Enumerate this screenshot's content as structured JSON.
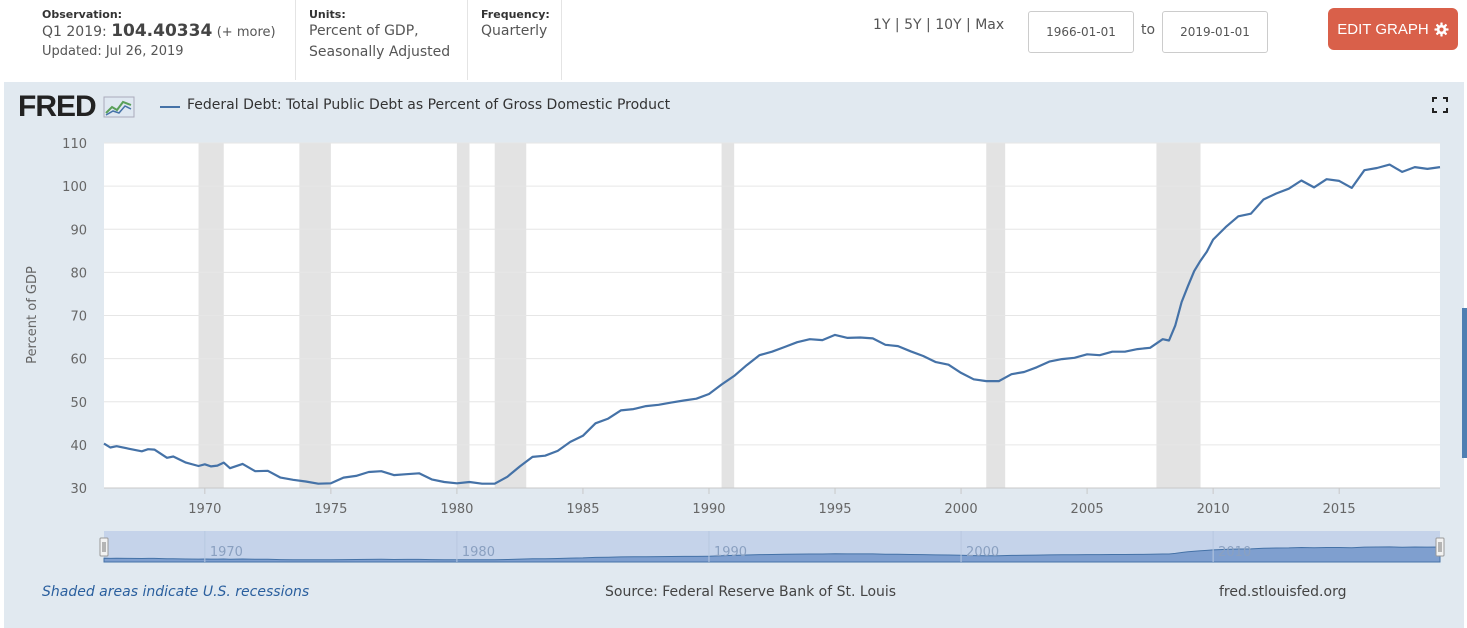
{
  "header": {
    "observation_label": "Observation:",
    "observation_period": "Q1 2019:",
    "observation_value": "104.40334",
    "observation_more": "(+ more)",
    "updated": "Updated: Jul 26, 2019",
    "units_label": "Units:",
    "units_line1": "Percent of GDP,",
    "units_line2": "Seasonally Adjusted",
    "frequency_label": "Frequency:",
    "frequency_value": "Quarterly",
    "range_1y": "1Y",
    "range_5y": "5Y",
    "range_10y": "10Y",
    "range_max": "Max",
    "range_sep": " | ",
    "start_date": "1966-01-01",
    "to_label": "to",
    "end_date": "2019-01-01",
    "edit_button": "EDIT GRAPH",
    "edit_icon": "gear-icon"
  },
  "logo": "FRED",
  "footer": {
    "recession_note": "Shaded areas indicate U.S. recessions",
    "source": "Source: Federal Reserve Bank of St. Louis",
    "site": "fred.stlouisfed.org"
  },
  "colors": {
    "line": "#4572a7",
    "recession": "#e3e3e3",
    "navigator_fill": "#7f9fcf",
    "navigator_bg": "#c5d3ea",
    "accent": "#d9604a"
  },
  "chart_data": {
    "type": "line",
    "title": "Federal Debt: Total Public Debt as Percent of Gross Domestic Product",
    "ylabel": "Percent of GDP",
    "xlabel": "",
    "xlim": [
      1966.0,
      2019.0
    ],
    "ylim": [
      30,
      110
    ],
    "yticks": [
      30,
      40,
      50,
      60,
      70,
      80,
      90,
      100,
      110
    ],
    "xticks": [
      1970,
      1975,
      1980,
      1985,
      1990,
      1995,
      2000,
      2005,
      2010,
      2015
    ],
    "navigator_ticks": [
      1970,
      1980,
      1990,
      2000,
      2010
    ],
    "grid": true,
    "legend": "top-left",
    "recessions": [
      [
        1969.75,
        1970.75
      ],
      [
        1973.75,
        1975.0
      ],
      [
        1980.0,
        1980.5
      ],
      [
        1981.5,
        1982.75
      ],
      [
        1990.5,
        1991.0
      ],
      [
        2001.0,
        2001.75
      ],
      [
        2007.75,
        2009.5
      ]
    ],
    "series": [
      {
        "name": "Federal Debt: Total Public Debt as Percent of Gross Domestic Product",
        "x": [
          1966.0,
          1966.25,
          1966.5,
          1967.0,
          1967.5,
          1967.75,
          1968.0,
          1968.5,
          1968.75,
          1969.25,
          1969.75,
          1970.0,
          1970.25,
          1970.5,
          1970.75,
          1971.0,
          1971.5,
          1972.0,
          1972.5,
          1973.0,
          1973.5,
          1974.0,
          1974.5,
          1975.0,
          1975.5,
          1976.0,
          1976.5,
          1977.0,
          1977.5,
          1978.0,
          1978.5,
          1979.0,
          1979.5,
          1980.0,
          1980.5,
          1981.0,
          1981.5,
          1982.0,
          1982.5,
          1983.0,
          1983.5,
          1984.0,
          1984.5,
          1985.0,
          1985.5,
          1986.0,
          1986.5,
          1987.0,
          1987.5,
          1988.0,
          1988.5,
          1989.0,
          1989.5,
          1990.0,
          1990.5,
          1991.0,
          1991.5,
          1992.0,
          1992.5,
          1993.0,
          1993.5,
          1994.0,
          1994.5,
          1995.0,
          1995.5,
          1996.0,
          1996.5,
          1997.0,
          1997.5,
          1998.0,
          1998.5,
          1999.0,
          1999.5,
          2000.0,
          2000.5,
          2001.0,
          2001.5,
          2002.0,
          2002.5,
          2003.0,
          2003.5,
          2004.0,
          2004.5,
          2005.0,
          2005.5,
          2006.0,
          2006.5,
          2007.0,
          2007.5,
          2008.0,
          2008.25,
          2008.5,
          2008.75,
          2009.0,
          2009.25,
          2009.5,
          2009.75,
          2010.0,
          2010.5,
          2011.0,
          2011.5,
          2012.0,
          2012.5,
          2013.0,
          2013.5,
          2014.0,
          2014.5,
          2015.0,
          2015.5,
          2016.0,
          2016.5,
          2017.0,
          2017.5,
          2018.0,
          2018.5,
          2019.0
        ],
        "values": [
          40.3,
          39.4,
          39.7,
          39.1,
          38.5,
          39.0,
          38.9,
          37.0,
          37.3,
          35.9,
          35.1,
          35.5,
          35.0,
          35.2,
          35.9,
          34.6,
          35.6,
          33.9,
          34.0,
          32.4,
          31.9,
          31.5,
          31.0,
          31.1,
          32.4,
          32.8,
          33.7,
          33.9,
          33.0,
          33.2,
          33.4,
          32.0,
          31.4,
          31.1,
          31.4,
          31.0,
          31.0,
          32.6,
          35.0,
          37.2,
          37.5,
          38.6,
          40.7,
          42.1,
          45.0,
          46.1,
          48.0,
          48.3,
          49.0,
          49.3,
          49.8,
          50.3,
          50.7,
          51.8,
          54.0,
          56.0,
          58.5,
          60.8,
          61.6,
          62.7,
          63.8,
          64.5,
          64.3,
          65.5,
          64.8,
          64.9,
          64.7,
          63.2,
          62.9,
          61.7,
          60.6,
          59.2,
          58.6,
          56.7,
          55.2,
          54.8,
          54.8,
          56.4,
          56.9,
          58.0,
          59.3,
          59.9,
          60.2,
          61.0,
          60.8,
          61.6,
          61.6,
          62.2,
          62.5,
          64.5,
          64.2,
          67.7,
          73.1,
          76.8,
          80.3,
          82.7,
          84.8,
          87.6,
          90.5,
          93.0,
          93.6,
          96.9,
          98.3,
          99.4,
          101.3,
          99.7,
          101.6,
          101.2,
          99.6,
          103.7,
          104.2,
          105.0,
          103.3,
          104.4,
          104.0,
          104.4
        ]
      }
    ]
  }
}
